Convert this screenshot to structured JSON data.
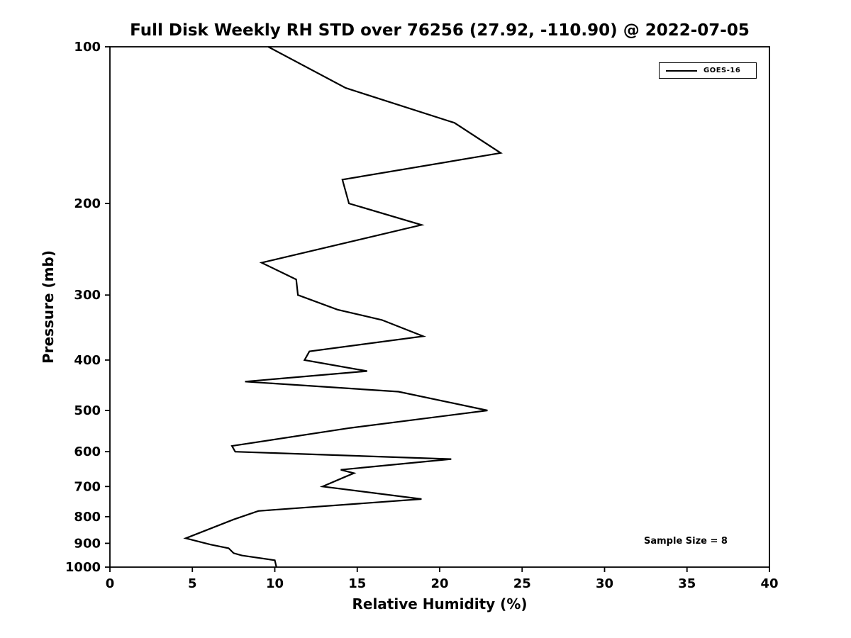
{
  "title": "Full Disk Weekly RH STD over 76256 (27.92, -110.90) @ 2022-07-05",
  "legend": {
    "series_label": "GOES-16"
  },
  "annotation": "Sample Size = 8",
  "chart_data": {
    "type": "line",
    "title": "Full Disk Weekly RH STD over 76256 (27.92, -110.90) @ 2022-07-05",
    "xlabel": "Relative Humidity (%)",
    "ylabel": "Pressure (mb)",
    "xlim": [
      0,
      40
    ],
    "x_ticks": [
      0,
      5,
      10,
      15,
      20,
      25,
      30,
      35,
      40
    ],
    "ylim": [
      100,
      1000
    ],
    "y_scale": "log",
    "y_axis_inverted": true,
    "y_ticks": [
      100,
      200,
      300,
      400,
      500,
      600,
      700,
      800,
      900,
      1000
    ],
    "grid": false,
    "legend_position": "upper right",
    "annotations": [
      "Sample Size = 8"
    ],
    "series": [
      {
        "name": "GOES-16",
        "color": "#000000",
        "pressure_mb": [
          100,
          120,
          140,
          160,
          180,
          200,
          220,
          260,
          280,
          300,
          320,
          335,
          360,
          385,
          400,
          420,
          440,
          460,
          500,
          540,
          585,
          600,
          620,
          650,
          660,
          670,
          700,
          740,
          780,
          810,
          880,
          905,
          920,
          940,
          950,
          970,
          1000
        ],
        "rh_percent": [
          9.6,
          14.3,
          20.9,
          23.7,
          14.1,
          14.5,
          18.9,
          9.2,
          11.3,
          11.4,
          13.8,
          16.5,
          19.0,
          12.1,
          11.8,
          15.6,
          8.2,
          17.5,
          22.9,
          14.6,
          7.4,
          7.6,
          20.7,
          14.0,
          14.8,
          14.3,
          12.9,
          18.9,
          9.0,
          7.5,
          4.6,
          6.1,
          7.2,
          7.5,
          8.0,
          10.0,
          10.1
        ]
      }
    ]
  }
}
